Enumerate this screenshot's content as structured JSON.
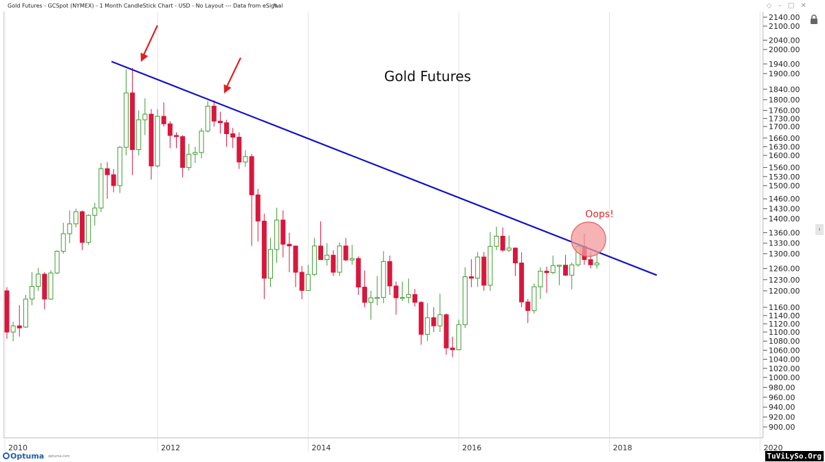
{
  "window": {
    "title": "Gold Futures - GCSpot (NYMEX) - 1 Month CandleStick Chart - USD - No Layout --- Data from eSignal"
  },
  "icons": [
    "edit-icon",
    "diamond-icon",
    "minus-icon",
    "maximize-icon",
    "close-icon",
    "lock-icon",
    "chevron-left-icon"
  ],
  "footer": {
    "logo_text": "Optuma",
    "logo_url": "optuma.com",
    "watermark": "TuViLySo.Org"
  },
  "colors": {
    "up": "#3c9a2f",
    "down": "#d9163c",
    "trendline": "#1010c8",
    "arrow": "#e02020",
    "annotation": "#d42a2a",
    "circle_fill": "#f29a9a",
    "circle_stroke": "#e65c5c"
  },
  "chart_data": {
    "type": "candlestick",
    "title": "Gold Futures",
    "annotation": "Oops!",
    "x_ticks": [
      "2010",
      "2012",
      "2014",
      "2016",
      "2018",
      "2020"
    ],
    "y_ticks": [
      "2140.00",
      "2100.00",
      "2040.00",
      "2000.00",
      "1940.00",
      "1900.00",
      "1840.00",
      "1800.00",
      "1760.00",
      "1730.00",
      "1700.00",
      "1660.00",
      "1630.00",
      "1600.00",
      "1560.00",
      "1530.00",
      "1500.00",
      "1460.00",
      "1430.00",
      "1400.00",
      "1360.00",
      "1330.00",
      "1300.00",
      "1260.00",
      "1230.00",
      "1200.00",
      "1160.00",
      "1140.00",
      "1120.00",
      "1100.00",
      "1080.00",
      "1060.00",
      "1040.00",
      "1020.00",
      "1000.00",
      "980.00",
      "960.00",
      "940.00",
      "920.00",
      "900.00"
    ],
    "ylim": [
      880,
      2160
    ],
    "trendline": [
      {
        "date": "2011-06",
        "price": 1950
      },
      {
        "date": "2018-08",
        "price": 1242
      }
    ],
    "candles": [
      {
        "d": "2010-01",
        "o": 1200,
        "h": 1210,
        "l": 1085,
        "c": 1100
      },
      {
        "d": "2010-02",
        "o": 1100,
        "h": 1125,
        "l": 1080,
        "c": 1115
      },
      {
        "d": "2010-03",
        "o": 1115,
        "h": 1165,
        "l": 1090,
        "c": 1110
      },
      {
        "d": "2010-04",
        "o": 1112,
        "h": 1190,
        "l": 1110,
        "c": 1180
      },
      {
        "d": "2010-05",
        "o": 1180,
        "h": 1250,
        "l": 1165,
        "c": 1212
      },
      {
        "d": "2010-06",
        "o": 1212,
        "h": 1262,
        "l": 1200,
        "c": 1245
      },
      {
        "d": "2010-07",
        "o": 1245,
        "h": 1250,
        "l": 1155,
        "c": 1180
      },
      {
        "d": "2010-08",
        "o": 1180,
        "h": 1255,
        "l": 1178,
        "c": 1248
      },
      {
        "d": "2010-09",
        "o": 1248,
        "h": 1310,
        "l": 1245,
        "c": 1307
      },
      {
        "d": "2010-10",
        "o": 1307,
        "h": 1388,
        "l": 1300,
        "c": 1357
      },
      {
        "d": "2010-11",
        "o": 1357,
        "h": 1425,
        "l": 1330,
        "c": 1385
      },
      {
        "d": "2010-12",
        "o": 1385,
        "h": 1430,
        "l": 1375,
        "c": 1421
      },
      {
        "d": "2011-01",
        "o": 1421,
        "h": 1425,
        "l": 1310,
        "c": 1332
      },
      {
        "d": "2011-02",
        "o": 1332,
        "h": 1413,
        "l": 1325,
        "c": 1410
      },
      {
        "d": "2011-03",
        "o": 1410,
        "h": 1448,
        "l": 1380,
        "c": 1432
      },
      {
        "d": "2011-04",
        "o": 1432,
        "h": 1575,
        "l": 1420,
        "c": 1556
      },
      {
        "d": "2011-05",
        "o": 1556,
        "h": 1578,
        "l": 1460,
        "c": 1536
      },
      {
        "d": "2011-06",
        "o": 1536,
        "h": 1555,
        "l": 1480,
        "c": 1500
      },
      {
        "d": "2011-07",
        "o": 1500,
        "h": 1632,
        "l": 1478,
        "c": 1628
      },
      {
        "d": "2011-08",
        "o": 1628,
        "h": 1917,
        "l": 1600,
        "c": 1826
      },
      {
        "d": "2011-09",
        "o": 1826,
        "h": 1923,
        "l": 1535,
        "c": 1620
      },
      {
        "d": "2011-10",
        "o": 1620,
        "h": 1760,
        "l": 1600,
        "c": 1725
      },
      {
        "d": "2011-11",
        "o": 1725,
        "h": 1805,
        "l": 1670,
        "c": 1746
      },
      {
        "d": "2011-12",
        "o": 1746,
        "h": 1765,
        "l": 1520,
        "c": 1565
      },
      {
        "d": "2012-01",
        "o": 1565,
        "h": 1765,
        "l": 1560,
        "c": 1738
      },
      {
        "d": "2012-02",
        "o": 1738,
        "h": 1790,
        "l": 1700,
        "c": 1710
      },
      {
        "d": "2012-03",
        "o": 1710,
        "h": 1720,
        "l": 1625,
        "c": 1669
      },
      {
        "d": "2012-04",
        "o": 1669,
        "h": 1680,
        "l": 1625,
        "c": 1665
      },
      {
        "d": "2012-05",
        "o": 1665,
        "h": 1670,
        "l": 1527,
        "c": 1560
      },
      {
        "d": "2012-06",
        "o": 1560,
        "h": 1640,
        "l": 1550,
        "c": 1604
      },
      {
        "d": "2012-07",
        "o": 1604,
        "h": 1630,
        "l": 1575,
        "c": 1610
      },
      {
        "d": "2012-08",
        "o": 1610,
        "h": 1695,
        "l": 1590,
        "c": 1684
      },
      {
        "d": "2012-09",
        "o": 1684,
        "h": 1795,
        "l": 1680,
        "c": 1776
      },
      {
        "d": "2012-10",
        "o": 1776,
        "h": 1798,
        "l": 1700,
        "c": 1720
      },
      {
        "d": "2012-11",
        "o": 1720,
        "h": 1755,
        "l": 1675,
        "c": 1714
      },
      {
        "d": "2012-12",
        "o": 1714,
        "h": 1725,
        "l": 1630,
        "c": 1675
      },
      {
        "d": "2013-01",
        "o": 1675,
        "h": 1695,
        "l": 1625,
        "c": 1663
      },
      {
        "d": "2013-02",
        "o": 1663,
        "h": 1680,
        "l": 1555,
        "c": 1578
      },
      {
        "d": "2013-03",
        "o": 1578,
        "h": 1618,
        "l": 1562,
        "c": 1596
      },
      {
        "d": "2013-04",
        "o": 1596,
        "h": 1605,
        "l": 1322,
        "c": 1472
      },
      {
        "d": "2013-05",
        "o": 1472,
        "h": 1490,
        "l": 1335,
        "c": 1393
      },
      {
        "d": "2013-06",
        "o": 1393,
        "h": 1415,
        "l": 1180,
        "c": 1234
      },
      {
        "d": "2013-07",
        "o": 1234,
        "h": 1345,
        "l": 1210,
        "c": 1312
      },
      {
        "d": "2013-08",
        "o": 1312,
        "h": 1433,
        "l": 1275,
        "c": 1396
      },
      {
        "d": "2013-09",
        "o": 1396,
        "h": 1425,
        "l": 1290,
        "c": 1327
      },
      {
        "d": "2013-10",
        "o": 1327,
        "h": 1360,
        "l": 1250,
        "c": 1322
      },
      {
        "d": "2013-11",
        "o": 1322,
        "h": 1320,
        "l": 1210,
        "c": 1250
      },
      {
        "d": "2013-12",
        "o": 1250,
        "h": 1267,
        "l": 1180,
        "c": 1201
      },
      {
        "d": "2014-01",
        "o": 1201,
        "h": 1270,
        "l": 1200,
        "c": 1244
      },
      {
        "d": "2014-02",
        "o": 1244,
        "h": 1345,
        "l": 1240,
        "c": 1322
      },
      {
        "d": "2014-03",
        "o": 1322,
        "h": 1392,
        "l": 1285,
        "c": 1284
      },
      {
        "d": "2014-04",
        "o": 1284,
        "h": 1330,
        "l": 1268,
        "c": 1296
      },
      {
        "d": "2014-05",
        "o": 1296,
        "h": 1310,
        "l": 1240,
        "c": 1250
      },
      {
        "d": "2014-06",
        "o": 1250,
        "h": 1332,
        "l": 1240,
        "c": 1322
      },
      {
        "d": "2014-07",
        "o": 1322,
        "h": 1345,
        "l": 1280,
        "c": 1283
      },
      {
        "d": "2014-08",
        "o": 1283,
        "h": 1325,
        "l": 1270,
        "c": 1287
      },
      {
        "d": "2014-09",
        "o": 1287,
        "h": 1293,
        "l": 1190,
        "c": 1210
      },
      {
        "d": "2014-10",
        "o": 1210,
        "h": 1255,
        "l": 1160,
        "c": 1172
      },
      {
        "d": "2014-11",
        "o": 1172,
        "h": 1200,
        "l": 1130,
        "c": 1183
      },
      {
        "d": "2014-12",
        "o": 1183,
        "h": 1240,
        "l": 1165,
        "c": 1184
      },
      {
        "d": "2015-01",
        "o": 1184,
        "h": 1307,
        "l": 1170,
        "c": 1279
      },
      {
        "d": "2015-02",
        "o": 1279,
        "h": 1295,
        "l": 1190,
        "c": 1213
      },
      {
        "d": "2015-03",
        "o": 1213,
        "h": 1225,
        "l": 1142,
        "c": 1183
      },
      {
        "d": "2015-04",
        "o": 1183,
        "h": 1225,
        "l": 1175,
        "c": 1184
      },
      {
        "d": "2015-05",
        "o": 1184,
        "h": 1233,
        "l": 1170,
        "c": 1191
      },
      {
        "d": "2015-06",
        "o": 1191,
        "h": 1205,
        "l": 1162,
        "c": 1172
      },
      {
        "d": "2015-07",
        "o": 1172,
        "h": 1175,
        "l": 1072,
        "c": 1095
      },
      {
        "d": "2015-08",
        "o": 1095,
        "h": 1170,
        "l": 1080,
        "c": 1135
      },
      {
        "d": "2015-09",
        "o": 1135,
        "h": 1160,
        "l": 1100,
        "c": 1115
      },
      {
        "d": "2015-10",
        "o": 1115,
        "h": 1193,
        "l": 1100,
        "c": 1142
      },
      {
        "d": "2015-11",
        "o": 1142,
        "h": 1145,
        "l": 1050,
        "c": 1065
      },
      {
        "d": "2015-12",
        "o": 1065,
        "h": 1090,
        "l": 1045,
        "c": 1061
      },
      {
        "d": "2016-01",
        "o": 1061,
        "h": 1130,
        "l": 1060,
        "c": 1118
      },
      {
        "d": "2016-02",
        "o": 1118,
        "h": 1263,
        "l": 1110,
        "c": 1238
      },
      {
        "d": "2016-03",
        "o": 1238,
        "h": 1285,
        "l": 1210,
        "c": 1234
      },
      {
        "d": "2016-04",
        "o": 1234,
        "h": 1305,
        "l": 1210,
        "c": 1291
      },
      {
        "d": "2016-05",
        "o": 1291,
        "h": 1305,
        "l": 1200,
        "c": 1215
      },
      {
        "d": "2016-06",
        "o": 1215,
        "h": 1362,
        "l": 1200,
        "c": 1321
      },
      {
        "d": "2016-07",
        "o": 1321,
        "h": 1377,
        "l": 1310,
        "c": 1350
      },
      {
        "d": "2016-08",
        "o": 1350,
        "h": 1375,
        "l": 1305,
        "c": 1310
      },
      {
        "d": "2016-09",
        "o": 1310,
        "h": 1352,
        "l": 1305,
        "c": 1316
      },
      {
        "d": "2016-10",
        "o": 1316,
        "h": 1318,
        "l": 1240,
        "c": 1275
      },
      {
        "d": "2016-11",
        "o": 1275,
        "h": 1304,
        "l": 1160,
        "c": 1173
      },
      {
        "d": "2016-12",
        "o": 1173,
        "h": 1180,
        "l": 1122,
        "c": 1152
      },
      {
        "d": "2017-01",
        "o": 1152,
        "h": 1220,
        "l": 1145,
        "c": 1211
      },
      {
        "d": "2017-02",
        "o": 1211,
        "h": 1263,
        "l": 1180,
        "c": 1253
      },
      {
        "d": "2017-03",
        "o": 1253,
        "h": 1265,
        "l": 1195,
        "c": 1249
      },
      {
        "d": "2017-04",
        "o": 1249,
        "h": 1295,
        "l": 1245,
        "c": 1268
      },
      {
        "d": "2017-05",
        "o": 1268,
        "h": 1270,
        "l": 1215,
        "c": 1269
      },
      {
        "d": "2017-06",
        "o": 1269,
        "h": 1297,
        "l": 1240,
        "c": 1242
      },
      {
        "d": "2017-07",
        "o": 1242,
        "h": 1276,
        "l": 1204,
        "c": 1270
      },
      {
        "d": "2017-08",
        "o": 1270,
        "h": 1326,
        "l": 1265,
        "c": 1321
      },
      {
        "d": "2017-09",
        "o": 1321,
        "h": 1358,
        "l": 1270,
        "c": 1284
      },
      {
        "d": "2017-10",
        "o": 1284,
        "h": 1305,
        "l": 1260,
        "c": 1270
      },
      {
        "d": "2017-11",
        "o": 1270,
        "h": 1300,
        "l": 1260,
        "c": 1275
      }
    ]
  }
}
